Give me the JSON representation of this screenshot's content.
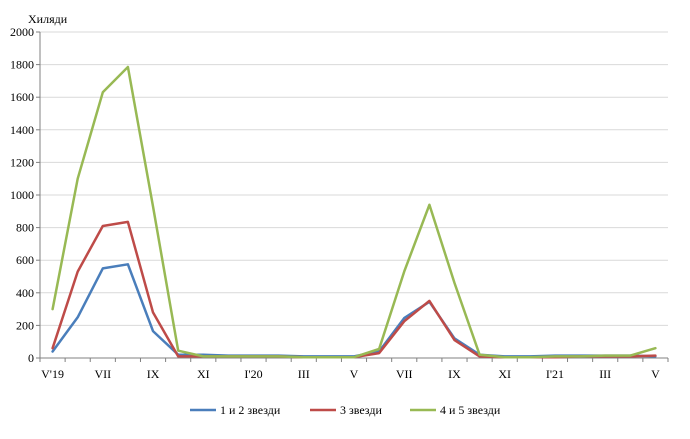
{
  "chart_data": {
    "type": "line",
    "ylabel": "Хиляди",
    "ylim": [
      0,
      2000
    ],
    "yticks": [
      0,
      200,
      400,
      600,
      800,
      1000,
      1200,
      1400,
      1600,
      1800,
      2000
    ],
    "grid": "horizontal",
    "legend_position": "bottom",
    "x_tick_labels": [
      "V'19",
      "VII",
      "IX",
      "XI",
      "I'20",
      "III",
      "V",
      "VII",
      "IX",
      "XI",
      "I'21",
      "III",
      "V"
    ],
    "x_tick_positions": [
      0,
      2,
      4,
      6,
      8,
      10,
      12,
      14,
      16,
      18,
      20,
      22,
      24
    ],
    "x_count": 25,
    "series": [
      {
        "name": "1 и 2 звезди",
        "color": "#4a7ebb",
        "values": [
          40,
          250,
          550,
          575,
          165,
          20,
          20,
          15,
          15,
          15,
          10,
          10,
          10,
          40,
          245,
          345,
          120,
          20,
          10,
          10,
          15,
          15,
          15,
          15,
          10
        ]
      },
      {
        "name": "3 звезди",
        "color": "#be4b48",
        "values": [
          60,
          530,
          810,
          835,
          280,
          10,
          10,
          10,
          10,
          10,
          5,
          5,
          5,
          30,
          225,
          350,
          110,
          10,
          5,
          5,
          5,
          10,
          10,
          10,
          15
        ]
      },
      {
        "name": "4 и 5 звезди",
        "color": "#98b954",
        "values": [
          300,
          1100,
          1630,
          1785,
          930,
          45,
          10,
          10,
          10,
          10,
          5,
          5,
          5,
          55,
          530,
          940,
          460,
          20,
          5,
          5,
          10,
          10,
          15,
          15,
          60
        ]
      }
    ]
  }
}
